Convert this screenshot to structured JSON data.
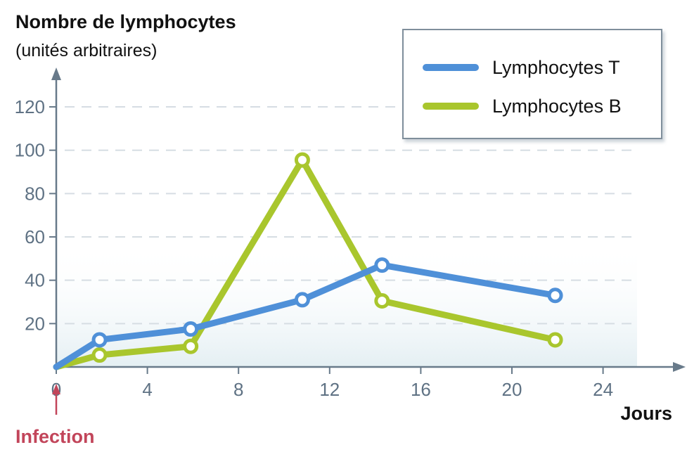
{
  "chart_data": {
    "type": "line",
    "ylabel": "Nombre de lymphocytes",
    "ylabel_units": "(unités arbitraires)",
    "xlabel": "Jours",
    "annotation": "Infection",
    "xlim": [
      0,
      24
    ],
    "ylim": [
      0,
      120
    ],
    "x_ticks": [
      0,
      4,
      8,
      12,
      16,
      20,
      24
    ],
    "y_ticks": [
      20,
      40,
      60,
      80,
      100,
      120
    ],
    "grid": true,
    "legend_position": "top-right",
    "series": [
      {
        "name": "Lymphocytes T",
        "color": "#4f90d8",
        "points": [
          [
            0,
            0
          ],
          [
            1.9,
            12.5
          ],
          [
            5.9,
            17.5
          ],
          [
            10.8,
            31
          ],
          [
            14.3,
            47
          ],
          [
            21.9,
            33
          ]
        ]
      },
      {
        "name": "Lymphocytes B",
        "color": "#a9c62d",
        "points": [
          [
            0,
            0
          ],
          [
            1.9,
            5.5
          ],
          [
            5.9,
            9.5
          ],
          [
            10.8,
            95.5
          ],
          [
            14.3,
            30.5
          ],
          [
            21.9,
            12.5
          ]
        ]
      }
    ]
  },
  "colors": {
    "axis": "#687a8a",
    "grid": "#d6dde3",
    "infection": "#c2455a",
    "plot_bg": "#eef5f7"
  }
}
